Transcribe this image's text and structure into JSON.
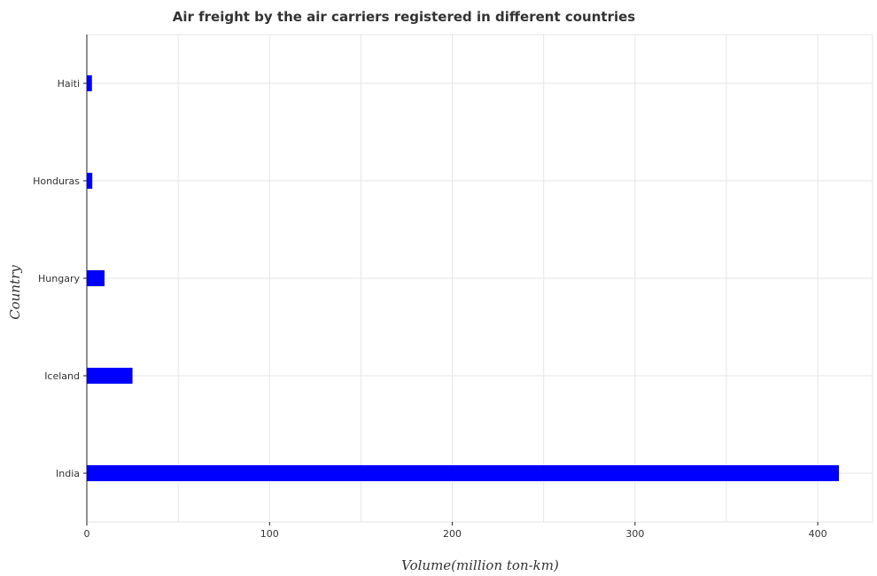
{
  "chart_data": {
    "type": "bar",
    "orientation": "horizontal",
    "title": "Air freight by the air carriers registered in different countries",
    "xlabel": "Volume(million ton-km)",
    "ylabel": "Country",
    "categories": [
      "Haiti",
      "Honduras",
      "Hungary",
      "Iceland",
      "India"
    ],
    "values": [
      2.8,
      3.0,
      9.7,
      25.0,
      411.6
    ],
    "xlim": [
      0,
      430
    ],
    "xticks": [
      0,
      100,
      200,
      300,
      400
    ],
    "grid": true,
    "bar_color": "#0000ff"
  }
}
